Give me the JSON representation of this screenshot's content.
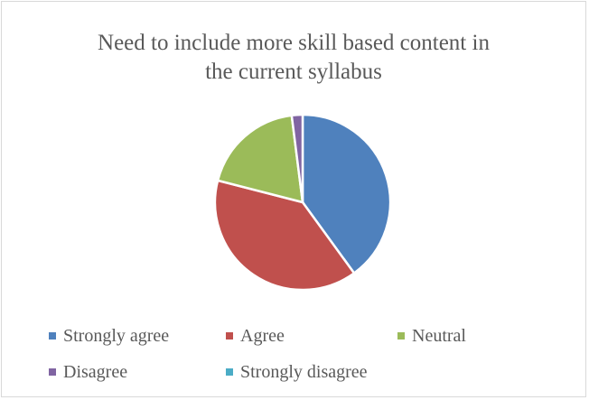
{
  "chart_data": {
    "type": "pie",
    "title": "Need to include more skill based content in the current syllabus",
    "title_lines": [
      "Need to include more skill based content in",
      "the current syllabus"
    ],
    "categories": [
      "Strongly agree",
      "Agree",
      "Neutral",
      "Disagree",
      "Strongly disagree"
    ],
    "values": [
      40,
      39,
      19,
      2,
      0
    ],
    "colors": [
      "#4f81bd",
      "#c0504d",
      "#9bbb59",
      "#8064a2",
      "#4bacc6"
    ],
    "legend_position": "bottom"
  }
}
